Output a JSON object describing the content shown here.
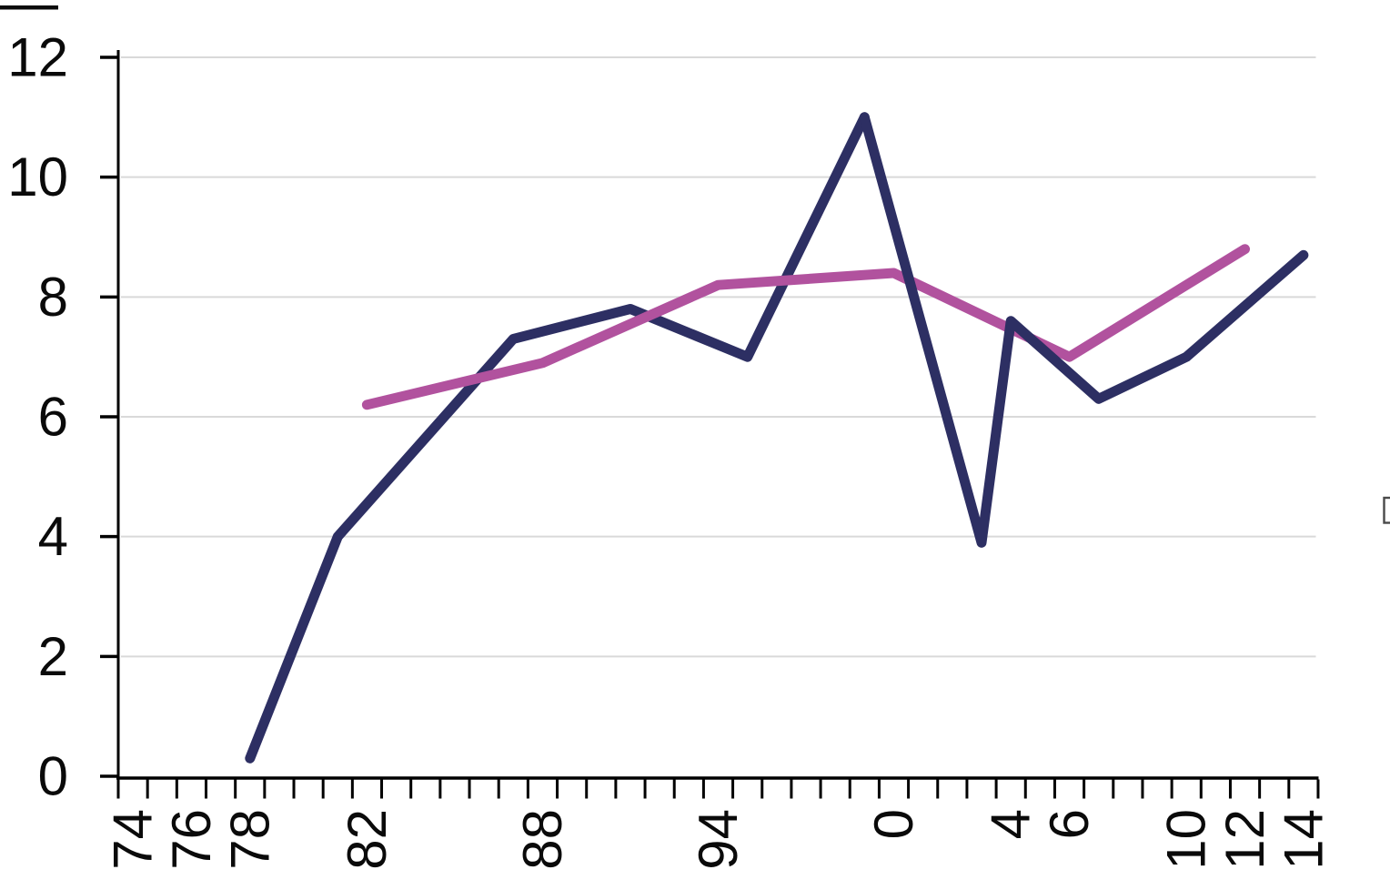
{
  "chart_data": {
    "type": "line",
    "title": "",
    "legend": "none",
    "grid": "horizontal-on",
    "x_axis": {
      "kind": "years",
      "first_year": 1974,
      "last_year": 2014,
      "tick_every_years": 1,
      "labels_rotated_degrees": -90,
      "shown_labels": [
        {
          "year": 1974,
          "label": "74"
        },
        {
          "year": 1976,
          "label": "76"
        },
        {
          "year": 1978,
          "label": "78"
        },
        {
          "year": 1982,
          "label": "82"
        },
        {
          "year": 1988,
          "label": "88"
        },
        {
          "year": 1994,
          "label": "94"
        },
        {
          "year": 2000,
          "label": "0"
        },
        {
          "year": 2004,
          "label": "4"
        },
        {
          "year": 2006,
          "label": "6"
        },
        {
          "year": 2010,
          "label": "10"
        },
        {
          "year": 2012,
          "label": "12"
        },
        {
          "year": 2014,
          "label": "14"
        }
      ]
    },
    "y_axis": {
      "range": [
        0,
        12
      ],
      "tick_values": [
        0,
        2,
        4,
        6,
        8,
        10,
        12
      ],
      "gridline_values": [
        2,
        4,
        6,
        8,
        10,
        12
      ]
    },
    "series": [
      {
        "name": "navy-series",
        "color": "#2d2f63",
        "points": [
          {
            "year": 1978,
            "value": 0.3
          },
          {
            "year": 1981,
            "value": 4.0
          },
          {
            "year": 1987,
            "value": 7.3
          },
          {
            "year": 1991,
            "value": 7.8
          },
          {
            "year": 1995,
            "value": 7.0
          },
          {
            "year": 1999,
            "value": 11.0
          },
          {
            "year": 2003,
            "value": 3.9
          },
          {
            "year": 2004,
            "value": 7.6
          },
          {
            "year": 2007,
            "value": 6.3
          },
          {
            "year": 2010,
            "value": 7.0
          },
          {
            "year": 2014,
            "value": 8.7
          }
        ]
      },
      {
        "name": "magenta-series",
        "color": "#b1529e",
        "points": [
          {
            "year": 1982,
            "value": 6.2
          },
          {
            "year": 1988,
            "value": 6.9
          },
          {
            "year": 1994,
            "value": 8.2
          },
          {
            "year": 2000,
            "value": 8.4
          },
          {
            "year": 2006,
            "value": 7.0
          },
          {
            "year": 2012,
            "value": 8.8
          }
        ]
      }
    ],
    "colors": {
      "axis": "#000000",
      "gridline": "#d9d9d9",
      "tick_label": "#0a0a0a",
      "background": "#ffffff"
    }
  },
  "artifacts": {
    "top_left_cropped_bar": "black horizontal bar cropped at top-left corner",
    "right_edge_clipped_box": "small empty rectangle glyph clipped at right edge"
  }
}
